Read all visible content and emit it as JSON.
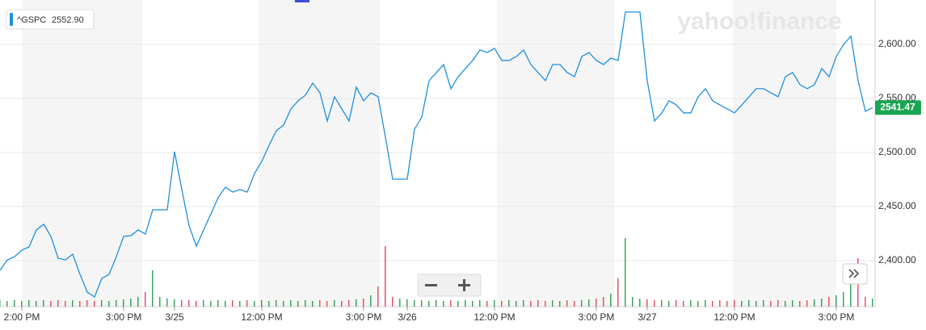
{
  "chart_data": {
    "type": "line",
    "legend": {
      "symbol": "^GSPC",
      "value_text": "2552.90"
    },
    "watermark": "yahoo!finance",
    "last_label": "2541.47",
    "series": [
      {
        "name": "^GSPC",
        "color": "#1e8fdf",
        "values": [
          2391.0,
          2400.7,
          2403.7,
          2409.7,
          2412.7,
          2428.4,
          2433.6,
          2422.4,
          2402.2,
          2400.7,
          2406.0,
          2387.3,
          2370.9,
          2366.4,
          2383.6,
          2387.3,
          2403.7,
          2422.4,
          2423.1,
          2428.4,
          2424.6,
          2447.0,
          2447.0,
          2447.0,
          2500.7,
          2465.7,
          2432.1,
          2413.4,
          2428.4,
          2443.3,
          2458.2,
          2467.9,
          2463.4,
          2465.7,
          2463.4,
          2480.6,
          2491.8,
          2506.7,
          2520.1,
          2525.4,
          2540.3,
          2547.8,
          2553.0,
          2564.2,
          2555.2,
          2529.1,
          2551.5,
          2540.3,
          2529.1,
          2560.4,
          2547.8,
          2555.2,
          2551.5,
          2514.2,
          2475.4,
          2475.4,
          2475.4,
          2521.6,
          2532.8,
          2566.4,
          2573.9,
          2581.3,
          2559.0,
          2570.1,
          2577.6,
          2585.1,
          2594.8,
          2592.5,
          2596.3,
          2585.1,
          2585.1,
          2588.8,
          2594.8,
          2581.3,
          2573.9,
          2566.4,
          2581.3,
          2581.3,
          2573.9,
          2570.1,
          2588.8,
          2592.5,
          2585.1,
          2581.3,
          2587.3,
          2585.1,
          2629.9,
          2629.9,
          2629.9,
          2566.4,
          2529.1,
          2536.6,
          2547.8,
          2544.0,
          2536.6,
          2536.6,
          2551.5,
          2559.0,
          2547.8,
          2544.0,
          2540.3,
          2536.6,
          2544.0,
          2551.5,
          2559.0,
          2559.0,
          2555.2,
          2551.5,
          2570.1,
          2573.9,
          2562.7,
          2559.0,
          2562.7,
          2577.6,
          2570.1,
          2588.8,
          2600.0,
          2607.5,
          2566.4,
          2538.1,
          2541.47
        ]
      }
    ],
    "volume": [
      8,
      7,
      8,
      7,
      8,
      7,
      8,
      7,
      8,
      7,
      8,
      7,
      8,
      7,
      8,
      7,
      8,
      9,
      10,
      12,
      18,
      45,
      12,
      10,
      9,
      8,
      8,
      7,
      8,
      7,
      8,
      7,
      8,
      7,
      8,
      7,
      8,
      7,
      8,
      7,
      8,
      7,
      8,
      7,
      8,
      7,
      8,
      7,
      8,
      9,
      10,
      14,
      25,
      75,
      12,
      10,
      9,
      8,
      8,
      7,
      8,
      7,
      8,
      7,
      8,
      7,
      8,
      7,
      8,
      7,
      8,
      7,
      8,
      7,
      8,
      7,
      8,
      7,
      8,
      7,
      8,
      9,
      10,
      12,
      16,
      35,
      85,
      12,
      10,
      9,
      8,
      8,
      7,
      8,
      7,
      8,
      7,
      8,
      7,
      8,
      7,
      8,
      7,
      8,
      7,
      8,
      7,
      8,
      7,
      8,
      7,
      8,
      9,
      10,
      12,
      14,
      18,
      30,
      60,
      12,
      10
    ],
    "vlim": [
      0,
      100
    ],
    "xlim": [
      0,
      120
    ],
    "xticks": [
      {
        "value": 3,
        "label": "2:00 PM"
      },
      {
        "value": 17,
        "label": "3:00 PM"
      },
      {
        "value": 24,
        "label": "3/25"
      },
      {
        "value": 36,
        "label": "12:00 PM"
      },
      {
        "value": 50,
        "label": "3:00 PM"
      },
      {
        "value": 56,
        "label": "3/26"
      },
      {
        "value": 68,
        "label": "12:00 PM"
      },
      {
        "value": 82,
        "label": "3:00 PM"
      },
      {
        "value": 89,
        "label": "3/27"
      },
      {
        "value": 101,
        "label": "12:00 PM"
      },
      {
        "value": 115,
        "label": "3:00 PM"
      }
    ],
    "ylim": [
      2357.5,
      2641
    ],
    "yticks": [
      {
        "value": 2400,
        "label": "2,400.00"
      },
      {
        "value": 2450,
        "label": "2,450.00"
      },
      {
        "value": 2500,
        "label": "2,500.00"
      },
      {
        "value": 2550,
        "label": "2,550.00"
      },
      {
        "value": 2600,
        "label": "2,600.00"
      }
    ],
    "grid": true,
    "up_color": "#3aa35e",
    "down_color": "#e0566a"
  }
}
